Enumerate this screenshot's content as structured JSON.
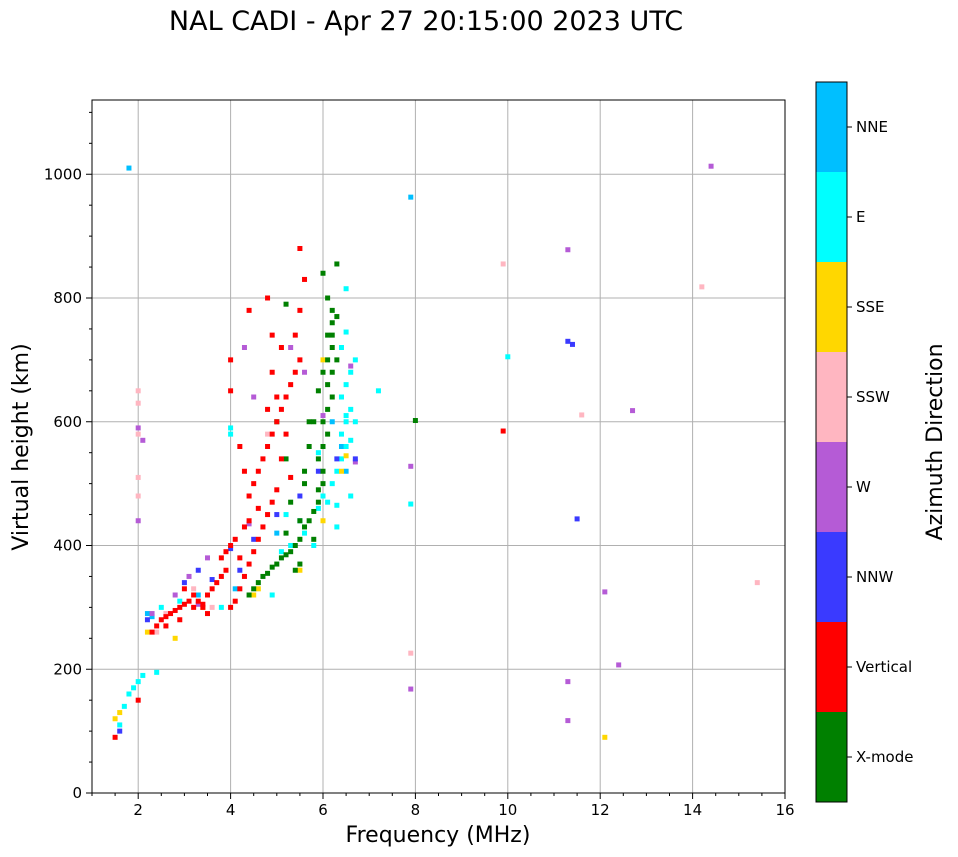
{
  "chart_data": {
    "type": "scatter",
    "title": "NAL CADI - Apr 27 20:15:00 2023 UTC",
    "xlabel": "Frequency (MHz)",
    "ylabel": "Virtual height (km)",
    "xlim": [
      1,
      16
    ],
    "ylim": [
      0,
      1120
    ],
    "xticks": [
      2,
      4,
      6,
      8,
      10,
      12,
      14,
      16
    ],
    "yticks": [
      0,
      200,
      400,
      600,
      800,
      1000
    ],
    "grid": true,
    "colorbar": {
      "label": "Azimuth Direction",
      "categories": [
        "X-mode",
        "Vertical",
        "NNW",
        "W",
        "SSW",
        "SSE",
        "E",
        "NNE"
      ],
      "colors": [
        "#008000",
        "#ff0000",
        "#3a3aff",
        "#b55bd6",
        "#ffb6c1",
        "#ffd700",
        "#00ffff",
        "#00bfff"
      ]
    },
    "series": [
      {
        "name": "X-mode",
        "points": [
          [
            4.6,
            340
          ],
          [
            4.7,
            350
          ],
          [
            4.8,
            355
          ],
          [
            4.9,
            365
          ],
          [
            5.0,
            370
          ],
          [
            5.1,
            380
          ],
          [
            5.2,
            385
          ],
          [
            5.3,
            390
          ],
          [
            5.4,
            400
          ],
          [
            5.5,
            410
          ],
          [
            5.2,
            420
          ],
          [
            5.6,
            430
          ],
          [
            5.7,
            440
          ],
          [
            5.8,
            455
          ],
          [
            5.9,
            470
          ],
          [
            5.9,
            490
          ],
          [
            6.0,
            500
          ],
          [
            6.0,
            520
          ],
          [
            5.9,
            540
          ],
          [
            6.0,
            560
          ],
          [
            6.1,
            580
          ],
          [
            6.0,
            600
          ],
          [
            6.1,
            620
          ],
          [
            6.2,
            640
          ],
          [
            6.1,
            660
          ],
          [
            6.2,
            680
          ],
          [
            6.1,
            700
          ],
          [
            6.2,
            720
          ],
          [
            6.1,
            740
          ],
          [
            6.2,
            760
          ],
          [
            6.2,
            780
          ],
          [
            6.1,
            800
          ],
          [
            6.0,
            840
          ],
          [
            6.3,
            855
          ],
          [
            5.5,
            370
          ],
          [
            5.4,
            360
          ],
          [
            5.6,
            520
          ],
          [
            5.7,
            560
          ],
          [
            5.3,
            470
          ],
          [
            5.2,
            540
          ],
          [
            5.0,
            600
          ],
          [
            5.2,
            790
          ],
          [
            4.5,
            330
          ],
          [
            4.4,
            320
          ],
          [
            5.8,
            600
          ],
          [
            5.9,
            650
          ],
          [
            6.3,
            700
          ],
          [
            6.2,
            740
          ],
          [
            5.6,
            500
          ],
          [
            5.8,
            410
          ],
          [
            8.0,
            602
          ],
          [
            5.5,
            440
          ],
          [
            5.7,
            600
          ],
          [
            6.3,
            770
          ],
          [
            6.0,
            680
          ]
        ]
      },
      {
        "name": "Vertical",
        "points": [
          [
            1.5,
            90
          ],
          [
            2.3,
            260
          ],
          [
            2.4,
            270
          ],
          [
            2.5,
            280
          ],
          [
            2.6,
            285
          ],
          [
            2.7,
            290
          ],
          [
            2.8,
            295
          ],
          [
            2.9,
            300
          ],
          [
            3.0,
            305
          ],
          [
            3.1,
            310
          ],
          [
            3.2,
            300
          ],
          [
            3.3,
            310
          ],
          [
            3.4,
            305
          ],
          [
            3.5,
            320
          ],
          [
            3.6,
            330
          ],
          [
            3.7,
            340
          ],
          [
            3.8,
            350
          ],
          [
            3.9,
            360
          ],
          [
            4.0,
            300
          ],
          [
            4.1,
            310
          ],
          [
            4.2,
            330
          ],
          [
            4.3,
            350
          ],
          [
            4.4,
            370
          ],
          [
            4.5,
            390
          ],
          [
            4.6,
            410
          ],
          [
            4.7,
            430
          ],
          [
            4.8,
            450
          ],
          [
            4.9,
            470
          ],
          [
            5.0,
            490
          ],
          [
            4.5,
            500
          ],
          [
            4.6,
            520
          ],
          [
            4.7,
            540
          ],
          [
            4.8,
            560
          ],
          [
            4.9,
            580
          ],
          [
            5.0,
            600
          ],
          [
            5.1,
            620
          ],
          [
            5.2,
            640
          ],
          [
            5.3,
            660
          ],
          [
            5.4,
            680
          ],
          [
            5.5,
            700
          ],
          [
            5.1,
            720
          ],
          [
            5.4,
            740
          ],
          [
            5.5,
            780
          ],
          [
            4.8,
            800
          ],
          [
            4.0,
            650
          ],
          [
            4.0,
            700
          ],
          [
            5.5,
            880
          ],
          [
            5.6,
            830
          ],
          [
            4.9,
            740
          ],
          [
            4.4,
            780
          ],
          [
            3.8,
            380
          ],
          [
            3.9,
            390
          ],
          [
            4.0,
            400
          ],
          [
            4.1,
            410
          ],
          [
            4.3,
            430
          ],
          [
            4.4,
            440
          ],
          [
            4.2,
            380
          ],
          [
            3.5,
            290
          ],
          [
            3.4,
            300
          ],
          [
            3.2,
            320
          ],
          [
            3.0,
            330
          ],
          [
            2.6,
            270
          ],
          [
            2.9,
            280
          ],
          [
            4.8,
            620
          ],
          [
            5.1,
            540
          ],
          [
            5.2,
            580
          ],
          [
            4.6,
            460
          ],
          [
            4.4,
            480
          ],
          [
            4.3,
            520
          ],
          [
            4.2,
            560
          ],
          [
            9.9,
            585
          ],
          [
            2.0,
            150
          ],
          [
            5.3,
            510
          ],
          [
            4.9,
            680
          ],
          [
            5.0,
            640
          ]
        ]
      },
      {
        "name": "NNW",
        "points": [
          [
            1.6,
            100
          ],
          [
            2.2,
            280
          ],
          [
            3.0,
            340
          ],
          [
            3.3,
            360
          ],
          [
            3.6,
            345
          ],
          [
            4.0,
            395
          ],
          [
            4.2,
            360
          ],
          [
            4.5,
            410
          ],
          [
            5.0,
            450
          ],
          [
            5.5,
            480
          ],
          [
            6.3,
            540
          ],
          [
            11.3,
            730
          ],
          [
            11.4,
            725
          ],
          [
            11.5,
            443
          ],
          [
            6.7,
            540
          ],
          [
            5.9,
            520
          ]
        ]
      },
      {
        "name": "W",
        "points": [
          [
            2.0,
            590
          ],
          [
            2.1,
            570
          ],
          [
            2.3,
            290
          ],
          [
            2.8,
            320
          ],
          [
            3.1,
            350
          ],
          [
            3.5,
            380
          ],
          [
            4.3,
            720
          ],
          [
            4.5,
            640
          ],
          [
            5.3,
            720
          ],
          [
            5.6,
            680
          ],
          [
            6.0,
            610
          ],
          [
            6.6,
            690
          ],
          [
            6.7,
            535
          ],
          [
            7.9,
            528
          ],
          [
            7.9,
            168
          ],
          [
            11.3,
            878
          ],
          [
            11.3,
            180
          ],
          [
            11.3,
            117
          ],
          [
            12.1,
            325
          ],
          [
            12.4,
            207
          ],
          [
            12.7,
            618
          ],
          [
            14.4,
            1013
          ],
          [
            2.0,
            440
          ],
          [
            3.3,
            305
          ],
          [
            4.4,
            435
          ]
        ]
      },
      {
        "name": "SSW",
        "points": [
          [
            2.0,
            650
          ],
          [
            2.0,
            630
          ],
          [
            2.0,
            580
          ],
          [
            2.0,
            510
          ],
          [
            2.0,
            480
          ],
          [
            2.4,
            260
          ],
          [
            2.6,
            290
          ],
          [
            3.6,
            300
          ],
          [
            7.9,
            226
          ],
          [
            9.9,
            855
          ],
          [
            11.6,
            611
          ],
          [
            14.2,
            818
          ],
          [
            15.4,
            340
          ],
          [
            3.2,
            330
          ],
          [
            4.8,
            580
          ]
        ]
      },
      {
        "name": "SSE",
        "points": [
          [
            1.5,
            120
          ],
          [
            1.6,
            130
          ],
          [
            2.8,
            250
          ],
          [
            3.4,
            300
          ],
          [
            4.5,
            320
          ],
          [
            4.6,
            330
          ],
          [
            5.5,
            360
          ],
          [
            6.0,
            440
          ],
          [
            6.4,
            520
          ],
          [
            6.5,
            545
          ],
          [
            6.0,
            700
          ],
          [
            12.1,
            90
          ],
          [
            2.2,
            260
          ]
        ]
      },
      {
        "name": "E",
        "points": [
          [
            1.6,
            110
          ],
          [
            1.7,
            140
          ],
          [
            1.8,
            160
          ],
          [
            1.9,
            170
          ],
          [
            2.0,
            180
          ],
          [
            2.1,
            190
          ],
          [
            2.4,
            195
          ],
          [
            2.5,
            300
          ],
          [
            2.9,
            310
          ],
          [
            3.8,
            300
          ],
          [
            4.0,
            590
          ],
          [
            4.0,
            580
          ],
          [
            4.9,
            320
          ],
          [
            5.1,
            390
          ],
          [
            5.3,
            400
          ],
          [
            5.6,
            420
          ],
          [
            5.8,
            400
          ],
          [
            5.9,
            460
          ],
          [
            6.0,
            480
          ],
          [
            6.2,
            500
          ],
          [
            6.3,
            520
          ],
          [
            6.4,
            540
          ],
          [
            6.5,
            560
          ],
          [
            6.4,
            580
          ],
          [
            6.5,
            600
          ],
          [
            6.6,
            620
          ],
          [
            6.4,
            640
          ],
          [
            6.5,
            660
          ],
          [
            6.6,
            680
          ],
          [
            6.7,
            700
          ],
          [
            6.3,
            465
          ],
          [
            6.6,
            480
          ],
          [
            6.4,
            720
          ],
          [
            6.5,
            745
          ],
          [
            6.5,
            815
          ],
          [
            6.1,
            470
          ],
          [
            5.9,
            550
          ],
          [
            6.7,
            600
          ],
          [
            7.2,
            650
          ],
          [
            7.9,
            467
          ],
          [
            10.0,
            705
          ],
          [
            6.3,
            430
          ],
          [
            5.2,
            450
          ],
          [
            6.6,
            570
          ],
          [
            6.5,
            610
          ]
        ]
      },
      {
        "name": "NNE",
        "points": [
          [
            1.8,
            1010
          ],
          [
            2.2,
            290
          ],
          [
            2.3,
            285
          ],
          [
            3.3,
            320
          ],
          [
            4.1,
            330
          ],
          [
            5.0,
            420
          ],
          [
            5.5,
            440
          ],
          [
            6.2,
            600
          ],
          [
            6.4,
            640
          ],
          [
            7.9,
            963
          ],
          [
            6.5,
            520
          ],
          [
            6.4,
            560
          ]
        ]
      }
    ]
  }
}
